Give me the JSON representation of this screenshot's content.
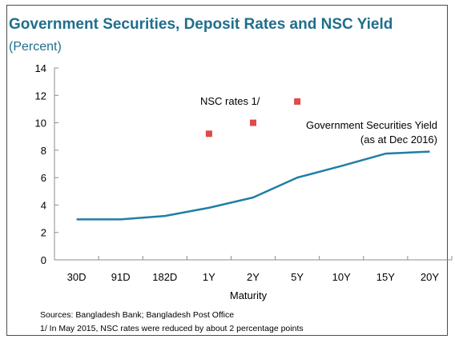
{
  "title": "Government Securities, Deposit Rates and NSC Yield",
  "subtitle": "(Percent)",
  "annotations": {
    "nsc": "NSC rates 1/",
    "gov_line1": "Government Securities Yield",
    "gov_line2": "(as at Dec 2016)"
  },
  "footnotes": {
    "sources": "Sources: Bangladesh Bank; Bangladesh Post Office",
    "note": "1/ In May 2015, NSC rates were reduced by about 2 percentage points"
  },
  "colors": {
    "title": "#1f6e8c",
    "line": "#1f7ea6",
    "marker": "#e04a4a",
    "axis": "#8c8c8c"
  },
  "chart_data": {
    "type": "line",
    "categories": [
      "30D",
      "91D",
      "182D",
      "1Y",
      "2Y",
      "5Y",
      "10Y",
      "15Y",
      "20Y"
    ],
    "xlabel": "Maturity",
    "ylabel": "",
    "ylim": [
      0,
      14
    ],
    "yticks": [
      0,
      2,
      4,
      6,
      8,
      10,
      12,
      14
    ],
    "grid": false,
    "series": [
      {
        "name": "Government Securities Yield",
        "kind": "line",
        "values": [
          2.95,
          2.95,
          3.2,
          3.8,
          4.55,
          6.0,
          6.85,
          7.75,
          7.9
        ]
      },
      {
        "name": "NSC rates 1/",
        "kind": "scatter",
        "points": [
          {
            "category": "1Y",
            "value": 9.2
          },
          {
            "category": "2Y",
            "value": 10.0
          },
          {
            "category": "5Y",
            "value": 11.55
          }
        ]
      }
    ]
  }
}
